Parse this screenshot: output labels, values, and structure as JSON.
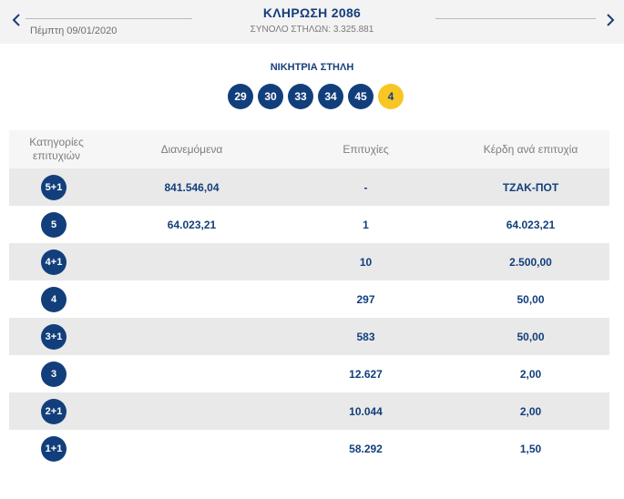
{
  "header": {
    "date": "Πέμπτη 09/01/2020",
    "title": "ΚΛΗΡΩΣΗ 2086",
    "columns_total": "ΣΥΝΟΛΟ ΣΤΗΛΩΝ: 3.325.881",
    "prev_icon": "chevron-left-icon",
    "next_icon": "chevron-right-icon"
  },
  "winning": {
    "title": "ΝΙΚΗΤΡΙΑ ΣΤΗΛΗ",
    "numbers": [
      "29",
      "30",
      "33",
      "34",
      "45"
    ],
    "joker": "4"
  },
  "table": {
    "headers": {
      "category": "Κατηγορίες επιτυχιών",
      "distributed": "Διανεμόμενα",
      "winners": "Επιτυχίες",
      "prize": "Κέρδη ανά επιτυχία"
    },
    "rows": [
      {
        "category": "5+1",
        "distributed": "841.546,04",
        "winners": "-",
        "prize": "ΤΖΑΚ-ΠΟΤ"
      },
      {
        "category": "5",
        "distributed": "64.023,21",
        "winners": "1",
        "prize": "64.023,21"
      },
      {
        "category": "4+1",
        "distributed": "",
        "winners": "10",
        "prize": "2.500,00"
      },
      {
        "category": "4",
        "distributed": "",
        "winners": "297",
        "prize": "50,00"
      },
      {
        "category": "3+1",
        "distributed": "",
        "winners": "583",
        "prize": "50,00"
      },
      {
        "category": "3",
        "distributed": "",
        "winners": "12.627",
        "prize": "2,00"
      },
      {
        "category": "2+1",
        "distributed": "",
        "winners": "10.044",
        "prize": "2,00"
      },
      {
        "category": "1+1",
        "distributed": "",
        "winners": "58.292",
        "prize": "1,50"
      }
    ]
  },
  "colors": {
    "primary": "#123f7c",
    "joker": "#f7c623",
    "row_shade": "#e9e9e9",
    "header_bg": "#f3f3f3"
  }
}
